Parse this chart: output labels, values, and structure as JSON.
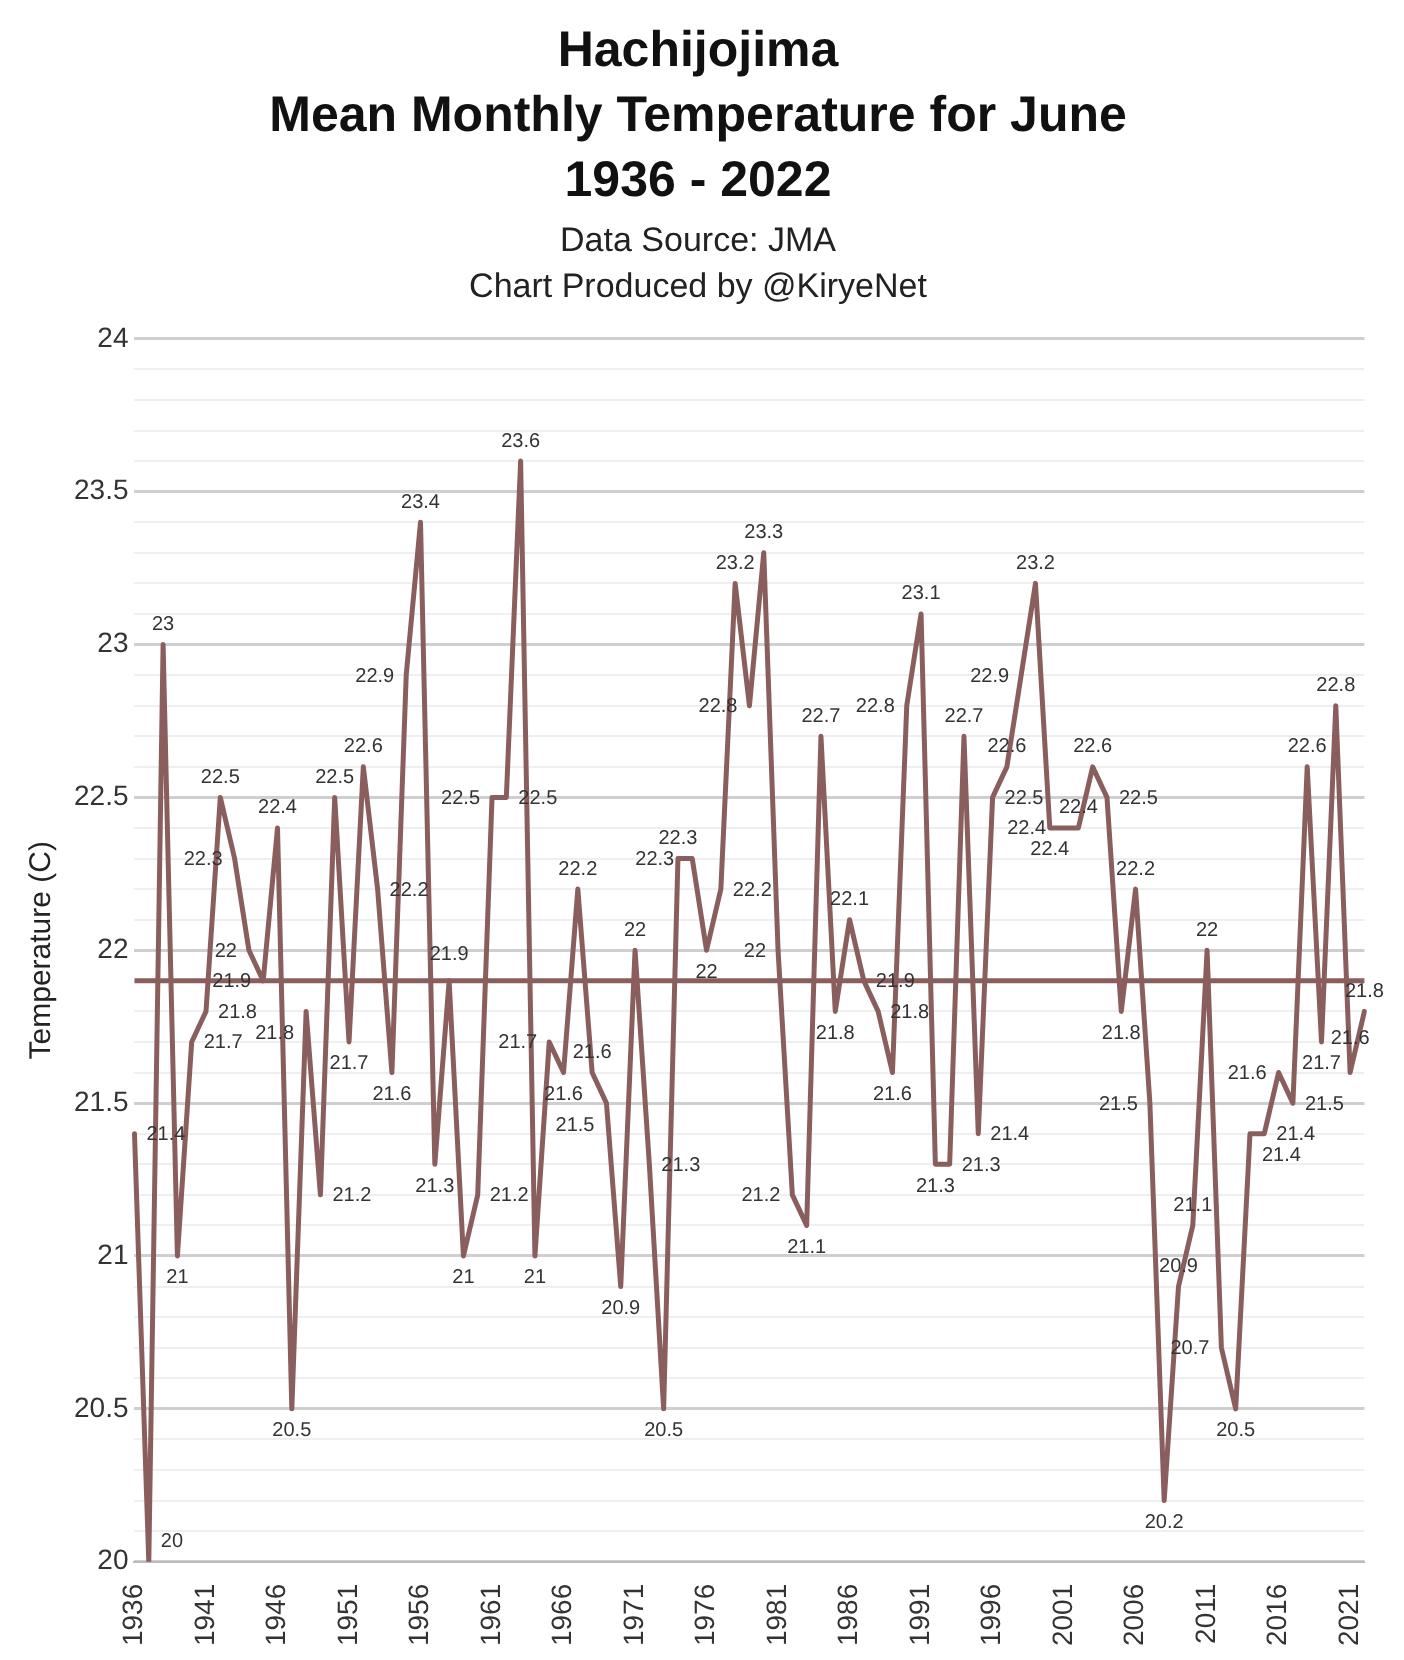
{
  "chart_data": {
    "type": "line",
    "title": "Hachijojima\nMean Monthly Temperature for June\n1936 - 2022",
    "subtitle": "Data Source: JMA\nChart Produced by @KiryeNet",
    "ylabel": "Temperature (C)",
    "categories": [
      "1936",
      null,
      null,
      null,
      null,
      "1941",
      null,
      null,
      null,
      null,
      "1946",
      null,
      null,
      null,
      null,
      "1951",
      null,
      null,
      null,
      null,
      "1956",
      null,
      null,
      null,
      null,
      "1961",
      null,
      null,
      null,
      null,
      "1966",
      null,
      null,
      null,
      null,
      "1971",
      null,
      null,
      null,
      null,
      "1976",
      null,
      null,
      null,
      null,
      "1981",
      null,
      null,
      null,
      null,
      "1986",
      null,
      null,
      null,
      null,
      "1991",
      null,
      null,
      null,
      null,
      "1996",
      null,
      null,
      null,
      null,
      "2001",
      null,
      null,
      null,
      null,
      "2006",
      null,
      null,
      null,
      null,
      "2011",
      null,
      null,
      null,
      null,
      "2016",
      null,
      null,
      null,
      null,
      "2021",
      null
    ],
    "series": [
      {
        "color": "#8b5e5e",
        "values": [
          21.4,
          20.0,
          23.0,
          21.0,
          21.7,
          21.8,
          22.5,
          22.3,
          22.0,
          21.9,
          22.4,
          20.5,
          21.8,
          21.2,
          22.5,
          21.7,
          22.6,
          22.2,
          21.6,
          22.9,
          23.4,
          21.3,
          21.9,
          21.0,
          21.2,
          22.5,
          22.5,
          23.6,
          21.0,
          21.7,
          21.6,
          22.2,
          21.6,
          21.5,
          20.9,
          22.0,
          21.3,
          20.5,
          22.3,
          22.3,
          22.0,
          22.2,
          23.2,
          22.8,
          23.3,
          22.0,
          21.2,
          21.1,
          22.7,
          21.8,
          22.1,
          21.9,
          21.8,
          21.6,
          22.8,
          23.1,
          21.3,
          21.3,
          22.7,
          21.4,
          22.5,
          22.6,
          22.9,
          23.2,
          22.4,
          22.4,
          22.4,
          22.6,
          22.5,
          21.8,
          22.2,
          21.5,
          20.2,
          20.9,
          21.1,
          22.0,
          20.7,
          20.5,
          21.4,
          21.4,
          21.6,
          21.5,
          22.6,
          21.7,
          22.8,
          21.6,
          21.8
        ]
      }
    ],
    "ylim": [
      20,
      24
    ],
    "yticks": [
      20,
      {
        "value": 20.1,
        "label": null
      },
      {
        "value": 20.2,
        "label": null
      },
      {
        "value": 20.3,
        "label": null
      },
      {
        "value": 20.4,
        "label": null
      },
      20.5,
      {
        "value": 20.6,
        "label": null
      },
      {
        "value": 20.7,
        "label": null
      },
      {
        "value": 20.8,
        "label": null
      },
      {
        "value": 20.9,
        "label": null
      },
      21,
      {
        "value": 21.1,
        "label": null
      },
      {
        "value": 21.2,
        "label": null
      },
      {
        "value": 21.3,
        "label": null
      },
      {
        "value": 21.4,
        "label": null
      },
      21.5,
      {
        "value": 21.6,
        "label": null
      },
      {
        "value": 21.7,
        "label": null
      },
      {
        "value": 21.8,
        "label": null
      },
      {
        "value": 21.9,
        "label": null
      },
      22,
      {
        "value": 22.1,
        "label": null
      },
      {
        "value": 22.2,
        "label": null
      },
      {
        "value": 22.3,
        "label": null
      },
      {
        "value": 22.4,
        "label": null
      },
      22.5,
      {
        "value": 22.6,
        "label": null
      },
      {
        "value": 22.7,
        "label": null
      },
      {
        "value": 22.8,
        "label": null
      },
      {
        "value": 22.9,
        "label": null
      },
      23,
      {
        "value": 23.1,
        "label": null
      },
      {
        "value": 23.2,
        "label": null
      },
      {
        "value": 23.3,
        "label": null
      },
      {
        "value": 23.4,
        "label": null
      },
      23.5,
      {
        "value": 23.6,
        "label": null
      },
      {
        "value": 23.7,
        "label": null
      },
      {
        "value": 23.8,
        "label": null
      },
      {
        "value": 23.9,
        "label": null
      },
      24
    ],
    "grid": "y",
    "legend": false,
    "marker": "none",
    "line_style": "solid",
    "data_labels": true,
    "ref_lines": [
      {
        "axis": "y",
        "value": 21.9,
        "color": "#8b5e5e"
      }
    ]
  }
}
